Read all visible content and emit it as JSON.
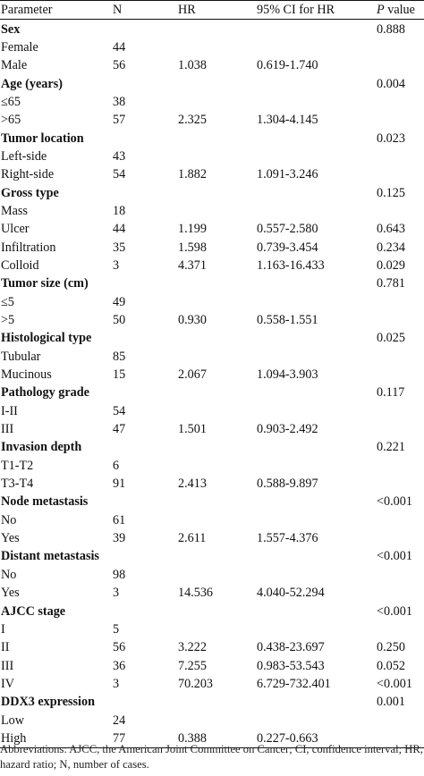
{
  "header": {
    "parameter": "Parameter",
    "n": "N",
    "hr": "HR",
    "ci": "95% CI for HR",
    "p_italic": "P",
    "p_rest": " value"
  },
  "rows": [
    {
      "label": "Sex",
      "group": true,
      "n": "",
      "hr": "",
      "ci": "",
      "p": "0.888"
    },
    {
      "label": "Female",
      "group": false,
      "n": "44",
      "hr": "",
      "ci": "",
      "p": ""
    },
    {
      "label": "Male",
      "group": false,
      "n": "56",
      "hr": "1.038",
      "ci": "0.619-1.740",
      "p": ""
    },
    {
      "label": "Age (years)",
      "group": true,
      "n": "",
      "hr": "",
      "ci": "",
      "p": "0.004"
    },
    {
      "label": "≤65",
      "group": false,
      "n": "38",
      "hr": "",
      "ci": "",
      "p": ""
    },
    {
      "label": ">65",
      "group": false,
      "n": "57",
      "hr": "2.325",
      "ci": "1.304-4.145",
      "p": ""
    },
    {
      "label": "Tumor location",
      "group": true,
      "n": "",
      "hr": "",
      "ci": "",
      "p": "0.023"
    },
    {
      "label": "Left-side",
      "group": false,
      "n": "43",
      "hr": "",
      "ci": "",
      "p": ""
    },
    {
      "label": "Right-side",
      "group": false,
      "n": "54",
      "hr": "1.882",
      "ci": "1.091-3.246",
      "p": ""
    },
    {
      "label": "Gross type",
      "group": true,
      "n": "",
      "hr": "",
      "ci": "",
      "p": "0.125"
    },
    {
      "label": "Mass",
      "group": false,
      "n": "18",
      "hr": "",
      "ci": "",
      "p": ""
    },
    {
      "label": "Ulcer",
      "group": false,
      "n": "44",
      "hr": "1.199",
      "ci": "0.557-2.580",
      "p": "0.643"
    },
    {
      "label": "Infiltration",
      "group": false,
      "n": "35",
      "hr": "1.598",
      "ci": "0.739-3.454",
      "p": "0.234"
    },
    {
      "label": "Colloid",
      "group": false,
      "n": "3",
      "hr": "4.371",
      "ci": "1.163-16.433",
      "p": "0.029"
    },
    {
      "label": "Tumor size (cm)",
      "group": true,
      "n": "",
      "hr": "",
      "ci": "",
      "p": "0.781"
    },
    {
      "label": "≤5",
      "group": false,
      "n": "49",
      "hr": "",
      "ci": "",
      "p": ""
    },
    {
      "label": ">5",
      "group": false,
      "n": "50",
      "hr": "0.930",
      "ci": "0.558-1.551",
      "p": ""
    },
    {
      "label": "Histological type",
      "group": true,
      "n": "",
      "hr": "",
      "ci": "",
      "p": "0.025"
    },
    {
      "label": "Tubular",
      "group": false,
      "n": "85",
      "hr": "",
      "ci": "",
      "p": ""
    },
    {
      "label": "Mucinous",
      "group": false,
      "n": "15",
      "hr": "2.067",
      "ci": "1.094-3.903",
      "p": ""
    },
    {
      "label": "Pathology grade",
      "group": true,
      "n": "",
      "hr": "",
      "ci": "",
      "p": "0.117"
    },
    {
      "label": "I-II",
      "group": false,
      "n": "54",
      "hr": "",
      "ci": "",
      "p": ""
    },
    {
      "label": "III",
      "group": false,
      "n": "47",
      "hr": "1.501",
      "ci": "0.903-2.492",
      "p": ""
    },
    {
      "label": "Invasion depth",
      "group": true,
      "n": "",
      "hr": "",
      "ci": "",
      "p": "0.221"
    },
    {
      "label": "T1-T2",
      "group": false,
      "n": "6",
      "hr": "",
      "ci": "",
      "p": ""
    },
    {
      "label": "T3-T4",
      "group": false,
      "n": "91",
      "hr": "2.413",
      "ci": "0.588-9.897",
      "p": ""
    },
    {
      "label": "Node metastasis",
      "group": true,
      "n": "",
      "hr": "",
      "ci": "",
      "p": "<0.001"
    },
    {
      "label": "No",
      "group": false,
      "n": "61",
      "hr": "",
      "ci": "",
      "p": ""
    },
    {
      "label": "Yes",
      "group": false,
      "n": "39",
      "hr": "2.611",
      "ci": "1.557-4.376",
      "p": ""
    },
    {
      "label": "Distant metastasis",
      "group": true,
      "n": "",
      "hr": "",
      "ci": "",
      "p": "<0.001"
    },
    {
      "label": "No",
      "group": false,
      "n": "98",
      "hr": "",
      "ci": "",
      "p": ""
    },
    {
      "label": "Yes",
      "group": false,
      "n": "3",
      "hr": "14.536",
      "ci": "4.040-52.294",
      "p": ""
    },
    {
      "label": "AJCC stage",
      "group": true,
      "n": "",
      "hr": "",
      "ci": "",
      "p": "<0.001"
    },
    {
      "label": "I",
      "group": false,
      "n": "5",
      "hr": "",
      "ci": "",
      "p": ""
    },
    {
      "label": "II",
      "group": false,
      "n": "56",
      "hr": "3.222",
      "ci": "0.438-23.697",
      "p": "0.250"
    },
    {
      "label": "III",
      "group": false,
      "n": "36",
      "hr": "7.255",
      "ci": "0.983-53.543",
      "p": "0.052"
    },
    {
      "label": "IV",
      "group": false,
      "n": "3",
      "hr": "70.203",
      "ci": "6.729-732.401",
      "p": "<0.001"
    },
    {
      "label": "DDX3 expression",
      "group": true,
      "n": "",
      "hr": "",
      "ci": "",
      "p": "0.001"
    },
    {
      "label": "Low",
      "group": false,
      "n": "24",
      "hr": "",
      "ci": "",
      "p": ""
    },
    {
      "label": "High",
      "group": false,
      "n": "77",
      "hr": "0.388",
      "ci": "0.227-0.663",
      "p": ""
    }
  ],
  "footnote": "Abbreviations: AJCC, the American Joint Committee on Cancer; CI, confidence interval; HR, hazard ratio; N, number of cases."
}
